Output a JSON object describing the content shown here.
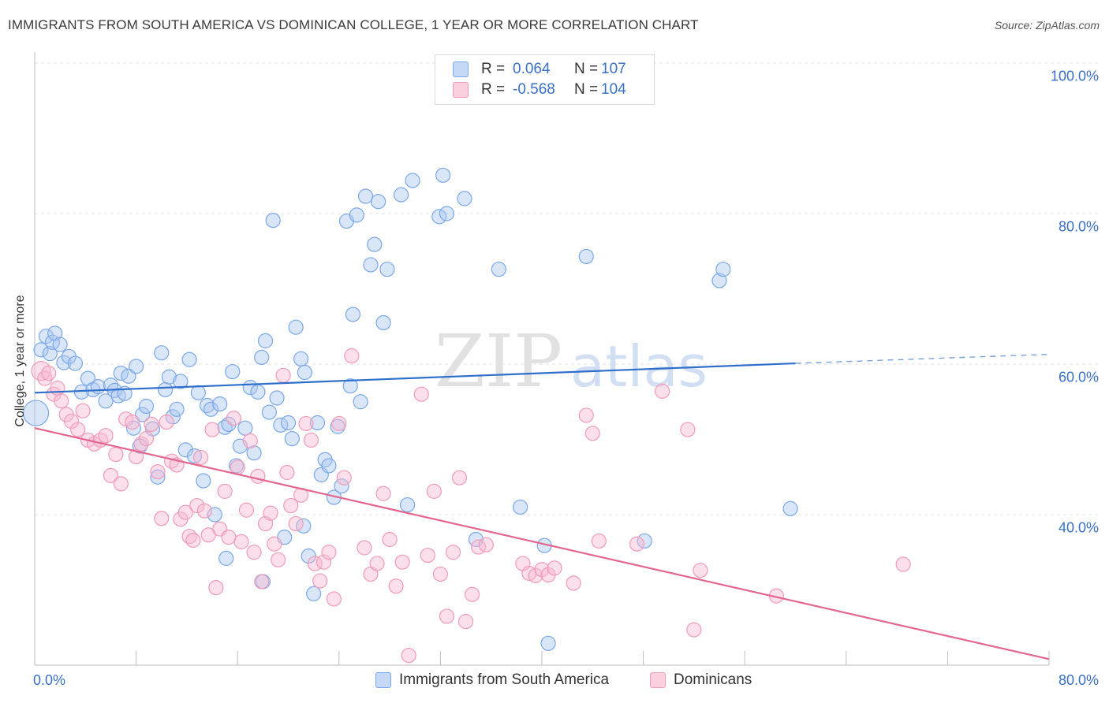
{
  "header": {
    "title": "IMMIGRANTS FROM SOUTH AMERICA VS DOMINICAN COLLEGE, 1 YEAR OR MORE CORRELATION CHART",
    "source": "Source: ZipAtlas.com"
  },
  "watermark": {
    "zip": "ZIP",
    "atlas": "atlas"
  },
  "stats_legend": [
    {
      "r_label": "R =",
      "r_value": "0.064",
      "n_label": "N =",
      "n_value": "107",
      "color": "#7aa7e8"
    },
    {
      "r_label": "R =",
      "r_value": "-0.568",
      "n_label": "N =",
      "n_value": "104",
      "color": "#f09bb8"
    }
  ],
  "chart_data": {
    "type": "scatter",
    "title": "IMMIGRANTS FROM SOUTH AMERICA VS DOMINICAN COLLEGE, 1 YEAR OR MORE CORRELATION CHART",
    "xlabel": "",
    "ylabel": "College, 1 year or more",
    "xlim": [
      0,
      80
    ],
    "ylim": [
      20,
      100
    ],
    "x_tick_labels": [
      "0.0%",
      "80.0%"
    ],
    "y_tick_labels": [
      {
        "value": 100,
        "label": "100.0%"
      },
      {
        "value": 80,
        "label": "80.0%"
      },
      {
        "value": 60,
        "label": "60.0%"
      },
      {
        "value": 40,
        "label": "40.0%"
      }
    ],
    "grid": true,
    "legend_position": "bottom-center",
    "series": [
      {
        "name": "Immigrants from South America",
        "color": "#7aa7e8",
        "trend": {
          "x0": 0,
          "y0": 56.2,
          "x1": 60,
          "y1": 60.1,
          "dashed_to": 80,
          "dashed_y": 61.3
        },
        "points": [
          [
            0.1,
            53.5
          ],
          [
            0.5,
            61.9
          ],
          [
            0.9,
            63.7
          ],
          [
            1.2,
            61.4
          ],
          [
            1.4,
            62.9
          ],
          [
            1.6,
            64.1
          ],
          [
            2.0,
            62.6
          ],
          [
            2.3,
            60.2
          ],
          [
            2.7,
            61.0
          ],
          [
            3.2,
            60.1
          ],
          [
            3.7,
            56.3
          ],
          [
            4.2,
            58.1
          ],
          [
            4.6,
            56.6
          ],
          [
            5.0,
            57.0
          ],
          [
            5.6,
            55.1
          ],
          [
            6.0,
            57.2
          ],
          [
            6.3,
            56.5
          ],
          [
            6.6,
            55.8
          ],
          [
            6.8,
            58.8
          ],
          [
            7.1,
            56.1
          ],
          [
            7.4,
            58.4
          ],
          [
            7.8,
            51.5
          ],
          [
            8.0,
            59.7
          ],
          [
            8.3,
            49.1
          ],
          [
            8.5,
            53.3
          ],
          [
            8.8,
            54.4
          ],
          [
            9.3,
            51.4
          ],
          [
            9.7,
            45.0
          ],
          [
            10.0,
            61.5
          ],
          [
            10.3,
            56.6
          ],
          [
            10.6,
            58.3
          ],
          [
            10.9,
            53.0
          ],
          [
            11.2,
            54.0
          ],
          [
            11.5,
            57.7
          ],
          [
            11.9,
            48.6
          ],
          [
            12.2,
            60.6
          ],
          [
            12.6,
            47.8
          ],
          [
            12.9,
            56.2
          ],
          [
            13.3,
            44.5
          ],
          [
            13.6,
            54.5
          ],
          [
            13.9,
            54.0
          ],
          [
            14.2,
            40.0
          ],
          [
            14.6,
            54.7
          ],
          [
            15.0,
            51.6
          ],
          [
            15.3,
            52.0
          ],
          [
            15.6,
            59.0
          ],
          [
            15.9,
            46.5
          ],
          [
            16.2,
            49.1
          ],
          [
            16.6,
            51.5
          ],
          [
            17.0,
            56.9
          ],
          [
            17.3,
            48.2
          ],
          [
            17.6,
            56.3
          ],
          [
            17.9,
            60.9
          ],
          [
            18.2,
            63.1
          ],
          [
            18.5,
            53.6
          ],
          [
            18.8,
            79.1
          ],
          [
            19.1,
            55.5
          ],
          [
            19.4,
            51.9
          ],
          [
            19.7,
            37.0
          ],
          [
            20.0,
            52.2
          ],
          [
            20.3,
            50.1
          ],
          [
            20.6,
            64.9
          ],
          [
            21.0,
            60.7
          ],
          [
            21.3,
            58.9
          ],
          [
            21.6,
            34.5
          ],
          [
            22.0,
            29.5
          ],
          [
            22.3,
            52.2
          ],
          [
            22.6,
            45.3
          ],
          [
            22.9,
            47.3
          ],
          [
            23.2,
            46.5
          ],
          [
            23.6,
            42.3
          ],
          [
            23.9,
            51.7
          ],
          [
            24.2,
            43.8
          ],
          [
            24.6,
            79.0
          ],
          [
            24.9,
            57.1
          ],
          [
            25.1,
            66.6
          ],
          [
            25.4,
            79.8
          ],
          [
            25.7,
            55.0
          ],
          [
            26.1,
            82.3
          ],
          [
            26.5,
            73.2
          ],
          [
            26.8,
            75.9
          ],
          [
            27.1,
            81.6
          ],
          [
            27.5,
            65.5
          ],
          [
            27.8,
            72.6
          ],
          [
            28.9,
            82.5
          ],
          [
            29.4,
            41.3
          ],
          [
            29.8,
            84.4
          ],
          [
            31.9,
            79.6
          ],
          [
            32.2,
            85.1
          ],
          [
            32.5,
            80.0
          ],
          [
            33.9,
            82.0
          ],
          [
            34.8,
            36.7
          ],
          [
            36.6,
            72.6
          ],
          [
            38.3,
            41.0
          ],
          [
            40.2,
            35.9
          ],
          [
            43.5,
            74.3
          ],
          [
            48.1,
            36.5
          ],
          [
            54.0,
            71.1
          ],
          [
            54.3,
            72.6
          ],
          [
            59.6,
            40.8
          ],
          [
            40.5,
            22.9
          ],
          [
            15.1,
            34.2
          ],
          [
            21.2,
            38.5
          ],
          [
            18.0,
            31.1
          ]
        ]
      },
      {
        "name": "Dominicans",
        "color": "#f09bb8",
        "trend": {
          "x0": 0,
          "y0": 51.5,
          "x1": 80,
          "y1": 20.8
        },
        "points": [
          [
            0.5,
            59.1
          ],
          [
            0.8,
            58.1
          ],
          [
            1.1,
            58.8
          ],
          [
            1.5,
            56.0
          ],
          [
            1.8,
            56.8
          ],
          [
            2.1,
            55.1
          ],
          [
            2.5,
            53.3
          ],
          [
            2.9,
            52.4
          ],
          [
            3.4,
            51.3
          ],
          [
            3.8,
            53.8
          ],
          [
            4.2,
            49.9
          ],
          [
            4.7,
            49.4
          ],
          [
            5.2,
            49.9
          ],
          [
            5.6,
            50.5
          ],
          [
            6.0,
            45.2
          ],
          [
            6.4,
            48.0
          ],
          [
            6.8,
            44.1
          ],
          [
            7.2,
            52.7
          ],
          [
            7.7,
            52.3
          ],
          [
            8.0,
            47.7
          ],
          [
            8.4,
            49.4
          ],
          [
            8.8,
            50.1
          ],
          [
            9.2,
            52.0
          ],
          [
            9.7,
            45.7
          ],
          [
            10.0,
            39.5
          ],
          [
            10.4,
            52.3
          ],
          [
            10.8,
            47.1
          ],
          [
            11.2,
            46.6
          ],
          [
            11.5,
            39.4
          ],
          [
            11.9,
            40.3
          ],
          [
            12.2,
            37.1
          ],
          [
            12.5,
            36.6
          ],
          [
            12.8,
            41.2
          ],
          [
            13.1,
            47.6
          ],
          [
            13.4,
            40.5
          ],
          [
            13.7,
            37.3
          ],
          [
            14.0,
            51.3
          ],
          [
            14.3,
            30.3
          ],
          [
            14.6,
            38.1
          ],
          [
            15.0,
            43.1
          ],
          [
            15.3,
            37.0
          ],
          [
            15.7,
            52.8
          ],
          [
            16.0,
            46.3
          ],
          [
            16.3,
            36.4
          ],
          [
            16.7,
            40.6
          ],
          [
            17.0,
            49.8
          ],
          [
            17.3,
            35.0
          ],
          [
            17.6,
            45.1
          ],
          [
            17.9,
            31.1
          ],
          [
            18.2,
            38.8
          ],
          [
            18.6,
            40.2
          ],
          [
            18.9,
            36.1
          ],
          [
            19.2,
            34.0
          ],
          [
            19.6,
            58.5
          ],
          [
            19.9,
            45.6
          ],
          [
            20.2,
            41.2
          ],
          [
            20.6,
            38.8
          ],
          [
            21.0,
            42.6
          ],
          [
            21.4,
            52.1
          ],
          [
            21.8,
            49.9
          ],
          [
            22.1,
            33.5
          ],
          [
            22.5,
            31.2
          ],
          [
            22.8,
            33.7
          ],
          [
            23.2,
            35.0
          ],
          [
            23.6,
            28.8
          ],
          [
            24.0,
            52.1
          ],
          [
            24.4,
            44.9
          ],
          [
            25.0,
            61.1
          ],
          [
            26.0,
            35.6
          ],
          [
            26.5,
            32.1
          ],
          [
            27.0,
            33.5
          ],
          [
            27.5,
            42.8
          ],
          [
            28.0,
            36.7
          ],
          [
            28.5,
            30.5
          ],
          [
            29.0,
            33.7
          ],
          [
            29.5,
            21.3
          ],
          [
            30.5,
            56.0
          ],
          [
            31.0,
            34.6
          ],
          [
            31.5,
            43.1
          ],
          [
            32.0,
            32.1
          ],
          [
            32.5,
            26.5
          ],
          [
            33.0,
            35.0
          ],
          [
            33.5,
            44.9
          ],
          [
            34.0,
            25.8
          ],
          [
            34.5,
            29.4
          ],
          [
            35.0,
            35.7
          ],
          [
            35.6,
            36.0
          ],
          [
            38.5,
            33.5
          ],
          [
            39.0,
            32.2
          ],
          [
            39.5,
            31.9
          ],
          [
            40.0,
            32.7
          ],
          [
            40.5,
            32.0
          ],
          [
            41.0,
            32.9
          ],
          [
            42.5,
            30.9
          ],
          [
            43.5,
            53.2
          ],
          [
            44.0,
            50.8
          ],
          [
            44.5,
            36.5
          ],
          [
            47.5,
            36.1
          ],
          [
            49.5,
            56.4
          ],
          [
            51.5,
            51.3
          ],
          [
            52.0,
            24.7
          ],
          [
            52.5,
            32.6
          ],
          [
            58.5,
            29.2
          ],
          [
            68.5,
            33.4
          ]
        ]
      }
    ]
  },
  "bottom_legend": [
    {
      "label": "Immigrants from South America",
      "color": "#7aa7e8"
    },
    {
      "label": "Dominicans",
      "color": "#f09bb8"
    }
  ]
}
